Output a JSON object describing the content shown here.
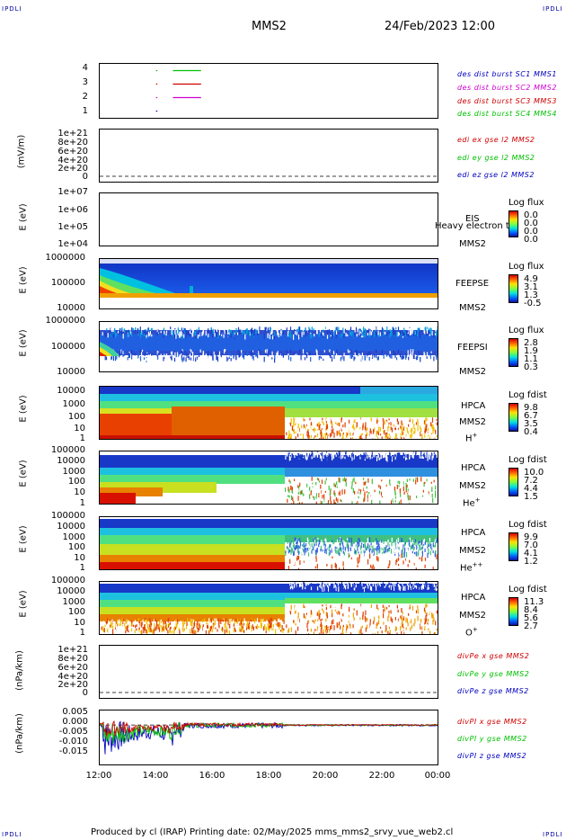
{
  "header": {
    "corner_left": "IPDLI",
    "corner_right": "IPDLI",
    "spacecraft": "MMS2",
    "date": "24/Feb/2023 12:00"
  },
  "footer": {
    "text": "Produced by cl (IRAP)   Printing date: 02/May/2025   mms_mms2_srvy_vue_web2.cl"
  },
  "colors": {
    "mms1": "#0000c0",
    "mms2": "#d000d0",
    "mms3": "#d00000",
    "mms4": "#00c000"
  },
  "chart_data": [
    {
      "type": "line",
      "id": "burst",
      "yticks": [
        "4",
        "3",
        "2",
        "1"
      ],
      "legend": [
        "des dist burst SC1 MMS1",
        "des dist burst SC2 MMS2",
        "des dist burst SC3 MMS3",
        "des dist burst SC4 MMS4"
      ],
      "series": [
        {
          "level": 1,
          "segments": [
            [
              14.0,
              14.0
            ]
          ]
        },
        {
          "level": 2,
          "segments": [
            [
              14.0,
              14.0
            ],
            [
              14.6,
              15.6
            ]
          ]
        },
        {
          "level": 3,
          "segments": [
            [
              14.0,
              14.0
            ],
            [
              14.6,
              15.6
            ]
          ]
        },
        {
          "level": 4,
          "segments": [
            [
              14.0,
              14.0
            ],
            [
              14.6,
              15.6
            ]
          ]
        }
      ]
    },
    {
      "type": "line",
      "id": "edi",
      "ylabel": "(mV/m)",
      "yticks": [
        "1e+21",
        "8e+20",
        "6e+20",
        "4e+20",
        "2e+20",
        "0"
      ],
      "legend": [
        "edi ex gse l2 MMS2",
        "edi ey gse l2 MMS2",
        "edi ez gse l2 MMS2"
      ]
    },
    {
      "type": "heatmap",
      "id": "eis",
      "ylabel": "E (eV)",
      "yticks": [
        "1e+07",
        "1e+06",
        "1e+05",
        "1e+04"
      ],
      "side": [
        "EIS",
        "MMS2"
      ],
      "overlap_text": "Heavy electron to",
      "cbar_title": "Log flux",
      "cbar_values": [
        "0.0",
        "0.0",
        "0.0",
        "0.0"
      ]
    },
    {
      "type": "heatmap",
      "id": "feepse",
      "ylabel": "E (eV)",
      "yticks": [
        "1000000",
        "100000",
        "10000"
      ],
      "side": [
        "FEEPSE",
        "MMS2"
      ],
      "cbar_title": "Log flux",
      "cbar_values": [
        "4.9",
        "3.1",
        "1.3",
        "-0.5"
      ]
    },
    {
      "type": "heatmap",
      "id": "feepsi",
      "ylabel": "E (eV)",
      "yticks": [
        "1000000",
        "100000",
        "10000"
      ],
      "side": [
        "FEEPSI",
        "MMS2"
      ],
      "cbar_title": "Log flux",
      "cbar_values": [
        "2.8",
        "1.9",
        "1.1",
        "0.3"
      ]
    },
    {
      "type": "heatmap",
      "id": "hpca_h",
      "ylabel": "E (eV)",
      "yticks": [
        "10000",
        "1000",
        "100",
        "10",
        "1"
      ],
      "side": [
        "HPCA",
        "MMS2",
        "H+"
      ],
      "cbar_title": "Log fdist",
      "cbar_values": [
        "9.8",
        "6.7",
        "3.5",
        "0.4"
      ]
    },
    {
      "type": "heatmap",
      "id": "hpca_he",
      "ylabel": "E (eV)",
      "yticks": [
        "100000",
        "10000",
        "1000",
        "100",
        "10",
        "1"
      ],
      "side": [
        "HPCA",
        "MMS2",
        "He+"
      ],
      "cbar_title": "Log fdist",
      "cbar_values": [
        "10.0",
        "7.2",
        "4.4",
        "1.5"
      ]
    },
    {
      "type": "heatmap",
      "id": "hpca_hepp",
      "ylabel": "E (eV)",
      "yticks": [
        "100000",
        "10000",
        "1000",
        "100",
        "10",
        "1"
      ],
      "side": [
        "HPCA",
        "MMS2",
        "He++"
      ],
      "cbar_title": "Log fdist",
      "cbar_values": [
        "9.9",
        "7.0",
        "4.1",
        "1.2"
      ]
    },
    {
      "type": "heatmap",
      "id": "hpca_o",
      "ylabel": "E (eV)",
      "yticks": [
        "100000",
        "10000",
        "1000",
        "100",
        "10",
        "1"
      ],
      "side": [
        "HPCA",
        "MMS2",
        "O+"
      ],
      "cbar_title": "Log fdist",
      "cbar_values": [
        "11.3",
        "8.4",
        "5.6",
        "2.7"
      ]
    },
    {
      "type": "line",
      "id": "divpe",
      "ylabel": "(nPa/km)",
      "yticks": [
        "1e+21",
        "8e+20",
        "6e+20",
        "4e+20",
        "2e+20",
        "0"
      ],
      "legend": [
        "divPe x gse MMS2",
        "divPe y gse MMS2",
        "divPe z gse MMS2"
      ]
    },
    {
      "type": "line",
      "id": "divpi",
      "ylabel": "(nPa/km)",
      "yticks": [
        "0.005",
        "0.000",
        "-0.005",
        "-0.010",
        "-0.015"
      ],
      "ylim": [
        -0.019,
        0.007
      ],
      "legend": [
        "divPI x gse MMS2",
        "divPI y gse MMS2",
        "divPI z gse MMS2"
      ]
    }
  ],
  "xaxis": {
    "ticks": [
      "12:00",
      "14:00",
      "16:00",
      "18:00",
      "20:00",
      "22:00",
      "00:00"
    ],
    "hours": [
      12,
      14,
      16,
      18,
      20,
      22,
      24
    ]
  }
}
